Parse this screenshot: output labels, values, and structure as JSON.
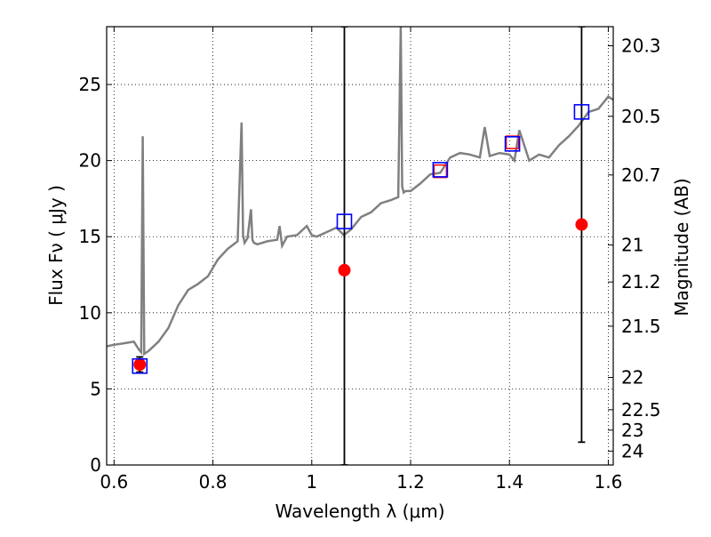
{
  "chart_data": {
    "type": "line",
    "xlabel": "Wavelength  λ (μm)",
    "ylabel": "Flux  Fν  ( μJy )",
    "ylabel_right": "Magnitude (AB)",
    "xlim": [
      0.585,
      1.61
    ],
    "ylim": [
      0,
      28.8
    ],
    "grid": true,
    "x_ticks": [
      0.6,
      0.8,
      1.0,
      1.2,
      1.4,
      1.6
    ],
    "x_tick_labels": [
      "0.6",
      "0.8",
      "1",
      "1.2",
      "1.4",
      "1.6"
    ],
    "y_ticks": [
      0,
      5,
      10,
      15,
      20,
      25
    ],
    "y_tick_labels": [
      "0",
      "5",
      "10",
      "15",
      "20",
      "25"
    ],
    "right_axis": {
      "magnitudes": [
        20.3,
        20.5,
        20.7,
        21,
        21.2,
        21.5,
        22,
        22.5,
        23,
        24
      ],
      "labels": [
        "20.3",
        "20.5",
        "20.7",
        "21",
        "21.2",
        "21.5",
        "22",
        "22.5",
        "23",
        "24"
      ]
    },
    "series": [
      {
        "kind": "spectrum",
        "color": "#808080",
        "x": [
          0.585,
          0.6,
          0.62,
          0.64,
          0.65,
          0.655,
          0.658,
          0.661,
          0.67,
          0.69,
          0.71,
          0.73,
          0.75,
          0.77,
          0.79,
          0.81,
          0.83,
          0.85,
          0.858,
          0.861,
          0.864,
          0.87,
          0.877,
          0.88,
          0.883,
          0.89,
          0.91,
          0.93,
          0.935,
          0.94,
          0.95,
          0.97,
          0.99,
          1.0,
          1.01,
          1.03,
          1.05,
          1.065,
          1.08,
          1.1,
          1.12,
          1.14,
          1.16,
          1.175,
          1.18,
          1.183,
          1.186,
          1.19,
          1.2,
          1.22,
          1.24,
          1.26,
          1.28,
          1.3,
          1.32,
          1.34,
          1.35,
          1.36,
          1.38,
          1.4,
          1.41,
          1.42,
          1.44,
          1.46,
          1.48,
          1.5,
          1.52,
          1.54,
          1.56,
          1.58,
          1.6,
          1.61
        ],
        "y": [
          7.8,
          7.9,
          8.0,
          8.1,
          7.6,
          7.4,
          21.6,
          7.3,
          7.5,
          8.1,
          9.0,
          10.5,
          11.5,
          11.9,
          12.4,
          13.5,
          14.2,
          14.7,
          22.5,
          15.1,
          14.6,
          14.9,
          16.8,
          14.8,
          14.6,
          14.5,
          14.7,
          14.8,
          15.7,
          14.4,
          15.0,
          15.1,
          15.7,
          15.1,
          15.0,
          15.3,
          15.6,
          15.1,
          15.5,
          16.3,
          16.6,
          17.2,
          17.4,
          17.6,
          28.8,
          18.3,
          17.9,
          18.0,
          18.0,
          18.5,
          19.1,
          19.2,
          20.2,
          20.5,
          20.4,
          20.2,
          22.2,
          20.3,
          20.5,
          20.4,
          20.0,
          22.0,
          20.0,
          20.4,
          20.2,
          21.0,
          21.6,
          22.3,
          23.2,
          23.4,
          24.2,
          24.0
        ]
      },
      {
        "kind": "photometry",
        "color": "#ff0000",
        "marker": "circle",
        "x": [
          0.652,
          1.066,
          1.546
        ],
        "y": [
          6.6,
          12.8,
          15.8
        ],
        "y_lower": [
          6.1,
          0,
          1.5
        ],
        "y_upper": [
          7.1,
          28.8,
          28.8
        ]
      },
      {
        "kind": "model",
        "color": "#0000ff",
        "marker": "square",
        "x": [
          0.652,
          1.066,
          1.26,
          1.406,
          1.546
        ],
        "y": [
          6.5,
          16.0,
          19.4,
          21.1,
          23.2
        ]
      },
      {
        "kind": "secondary",
        "color": "#ff0000",
        "marker": "square",
        "x": [
          1.26,
          1.406
        ],
        "y": [
          19.3,
          21.2
        ]
      }
    ]
  }
}
